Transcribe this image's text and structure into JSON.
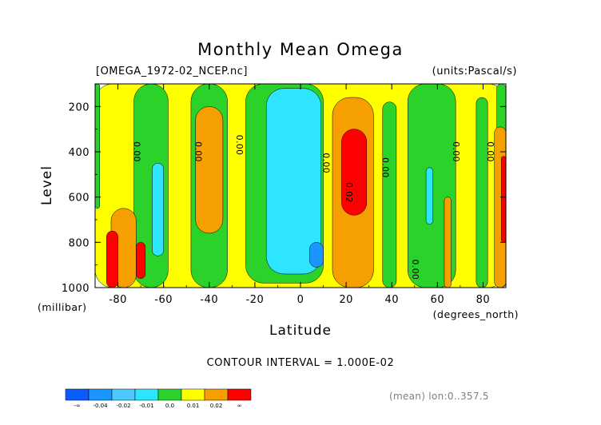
{
  "chart_data": {
    "type": "heatmap",
    "title": "Monthly Mean Omega",
    "file_label": "[OMEGA_1972-02_NCEP.nc]",
    "units_label": "(units:Pascal/s)",
    "xlabel": "Latitude",
    "x_units": "(degrees_north)",
    "ylabel": "Level",
    "y_units": "(millibar)",
    "xlim": [
      -90,
      90
    ],
    "ylim": [
      1000,
      100
    ],
    "x_ticks": [
      -80,
      -60,
      -40,
      -20,
      0,
      20,
      40,
      60,
      80
    ],
    "x_tick_labels": [
      "-80",
      "-60",
      "-40",
      "-20",
      "0",
      "20",
      "40",
      "60",
      "80"
    ],
    "y_ticks": [
      200,
      400,
      600,
      800,
      1000
    ],
    "y_tick_labels": [
      "200",
      "400",
      "600",
      "800",
      "1000"
    ],
    "contour_interval_text": "CONTOUR INTERVAL = 1.000E-02",
    "footer_text": "(mean) lon:0..357.5",
    "colorbar": {
      "colors": [
        "#0a5cff",
        "#1c96ff",
        "#4cc8ff",
        "#2ee5ff",
        "#2ad22a",
        "#ffff00",
        "#f5a000",
        "#ff0000"
      ],
      "labels": [
        "-∞",
        "-0.04",
        "-0.02",
        "-0.01",
        "0.0",
        "0.01",
        "0.02",
        "∞"
      ]
    },
    "contour_labels": [
      {
        "text": "0.00",
        "x": -72,
        "y": 400
      },
      {
        "text": "0.00",
        "x": -45,
        "y": 400
      },
      {
        "text": "0.00",
        "x": -27,
        "y": 370
      },
      {
        "text": "0.00",
        "x": 11,
        "y": 450
      },
      {
        "text": "0.02",
        "x": 21,
        "y": 580
      },
      {
        "text": "0.00",
        "x": 37,
        "y": 470
      },
      {
        "text": "0.00",
        "x": 50,
        "y": 920
      },
      {
        "text": "0.00",
        "x": 68,
        "y": 400
      },
      {
        "text": "0.00",
        "x": 83,
        "y": 400
      }
    ],
    "fields": [
      {
        "level": "yellow",
        "x": [
          -90,
          90
        ],
        "y": [
          100,
          1000
        ]
      },
      {
        "level": "green",
        "x": [
          -90,
          -88
        ],
        "y": [
          100,
          650
        ]
      },
      {
        "level": "green",
        "x": [
          -73,
          -58
        ],
        "y": [
          100,
          1000
        ]
      },
      {
        "level": "green",
        "x": [
          -48,
          -32
        ],
        "y": [
          100,
          1000
        ]
      },
      {
        "level": "green",
        "x": [
          -24,
          10
        ],
        "y": [
          100,
          980
        ]
      },
      {
        "level": "green",
        "x": [
          36,
          42
        ],
        "y": [
          180,
          1000
        ]
      },
      {
        "level": "green",
        "x": [
          47,
          68
        ],
        "y": [
          100,
          1000
        ]
      },
      {
        "level": "green",
        "x": [
          77,
          82
        ],
        "y": [
          160,
          1000
        ]
      },
      {
        "level": "green",
        "x": [
          86,
          90
        ],
        "y": [
          100,
          1000
        ]
      },
      {
        "level": "cyan",
        "x": [
          -65,
          -60
        ],
        "y": [
          450,
          860
        ]
      },
      {
        "level": "cyan",
        "x": [
          -15,
          9
        ],
        "y": [
          120,
          940
        ]
      },
      {
        "level": "cyan",
        "x": [
          55,
          58
        ],
        "y": [
          470,
          720
        ]
      },
      {
        "level": "orange",
        "x": [
          -83,
          -72
        ],
        "y": [
          650,
          1000
        ]
      },
      {
        "level": "orange",
        "x": [
          -46,
          -34
        ],
        "y": [
          200,
          760
        ]
      },
      {
        "level": "orange",
        "x": [
          14,
          32
        ],
        "y": [
          160,
          1000
        ]
      },
      {
        "level": "orange",
        "x": [
          63,
          66
        ],
        "y": [
          600,
          1000
        ]
      },
      {
        "level": "orange",
        "x": [
          85,
          90
        ],
        "y": [
          290,
          1000
        ]
      },
      {
        "level": "red",
        "x": [
          -85,
          -80
        ],
        "y": [
          750,
          1000
        ]
      },
      {
        "level": "red",
        "x": [
          -72,
          -68
        ],
        "y": [
          800,
          960
        ]
      },
      {
        "level": "red",
        "x": [
          18,
          29
        ],
        "y": [
          300,
          680
        ]
      },
      {
        "level": "red",
        "x": [
          88,
          90
        ],
        "y": [
          420,
          800
        ]
      },
      {
        "level": "blue",
        "x": [
          4,
          10
        ],
        "y": [
          800,
          910
        ]
      }
    ]
  }
}
